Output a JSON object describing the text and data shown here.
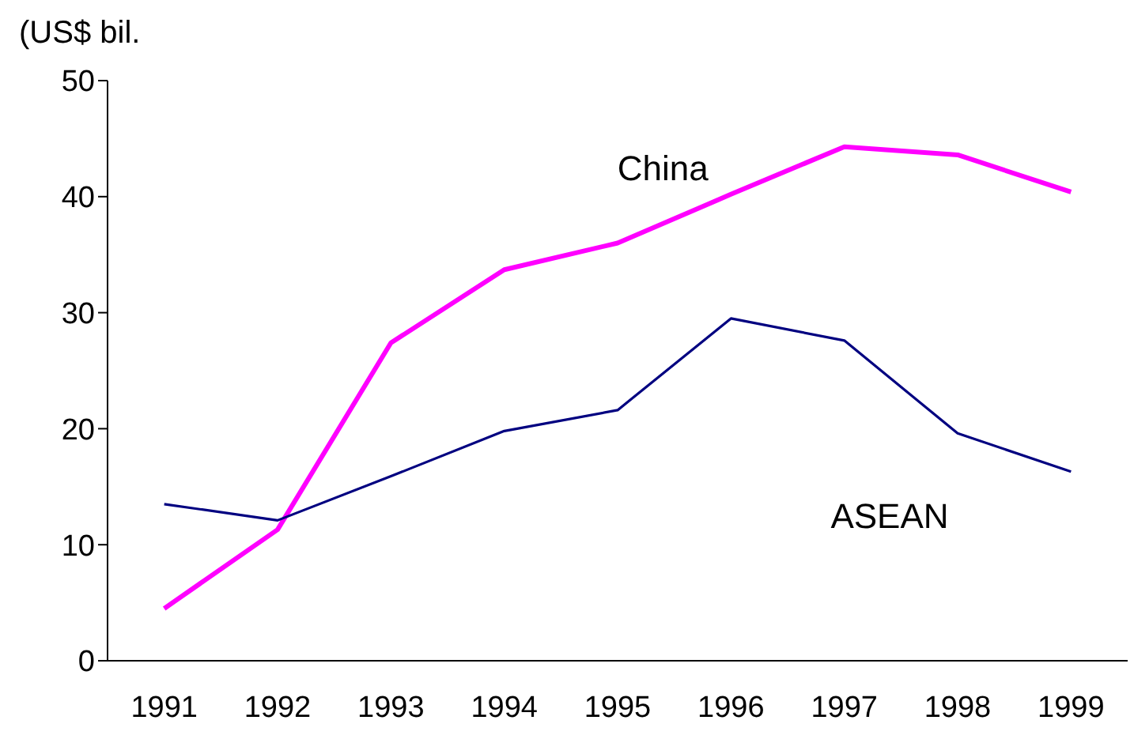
{
  "chart_data": {
    "type": "line",
    "ylabel": "(US$ bil.",
    "categories": [
      "1991",
      "1992",
      "1993",
      "1994",
      "1995",
      "1996",
      "1997",
      "1998",
      "1999"
    ],
    "series": [
      {
        "name": "China",
        "color": "#ff00ff",
        "values": [
          4.5,
          11.3,
          27.4,
          33.7,
          36.0,
          40.2,
          44.3,
          43.6,
          40.4
        ]
      },
      {
        "name": "ASEAN",
        "color": "#000080",
        "values": [
          13.5,
          12.1,
          15.9,
          19.8,
          21.6,
          29.5,
          27.6,
          19.6,
          16.3
        ]
      }
    ],
    "ylim": [
      0,
      50
    ],
    "yticks": [
      0,
      10,
      20,
      30,
      40,
      50
    ],
    "marker": "none",
    "line_style": "solid"
  }
}
